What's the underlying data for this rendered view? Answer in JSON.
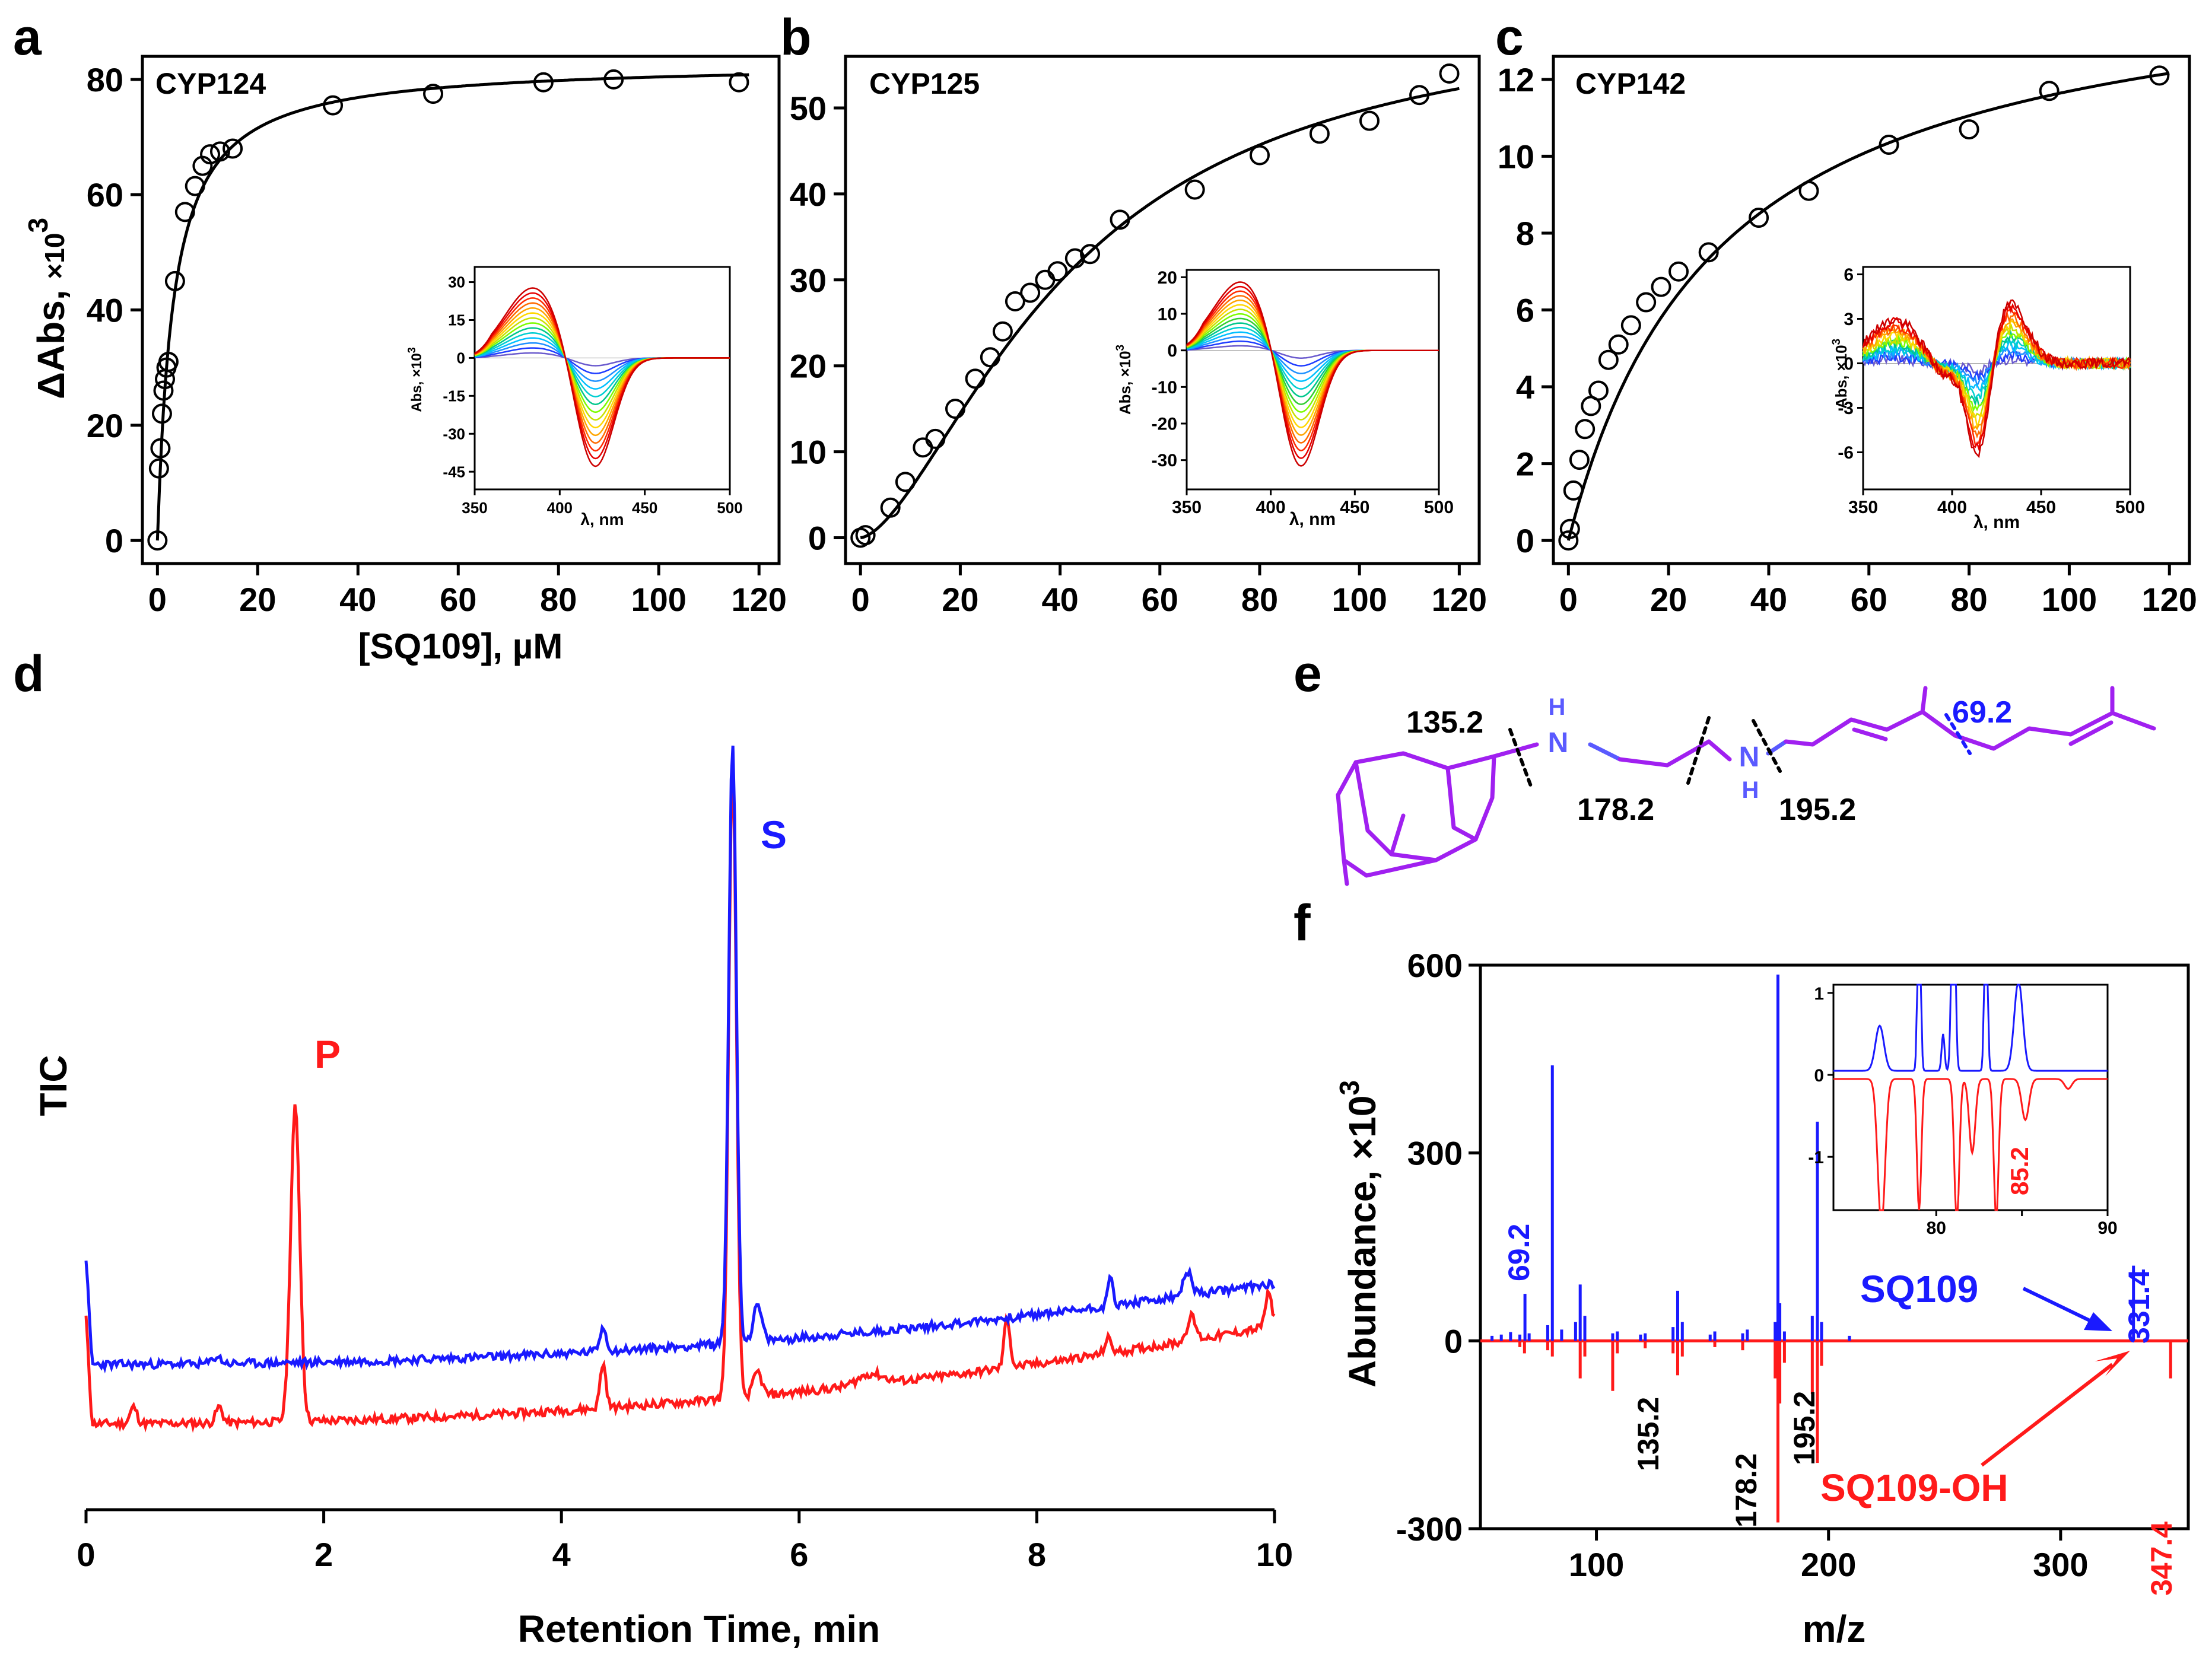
{
  "panels": {
    "a": "a",
    "b": "b",
    "c": "c",
    "d": "d",
    "e": "e",
    "f": "f"
  },
  "colors": {
    "black": "#000000",
    "red": "#ff1a1a",
    "blue": "#1a1aff",
    "purple": "#a020f0",
    "nitrogen": "#5a5aff",
    "cut_blue": "#1a1aff"
  },
  "chart_data": [
    {
      "id": "a",
      "type": "scatter",
      "title": "CYP124",
      "ylabel_main": "ΔAbs, ",
      "ylabel_sup": "×10",
      "ylabel_exp": "3",
      "xlabel": "[SQ109], µM",
      "xlim": [
        -3,
        124
      ],
      "ylim": [
        -4,
        84
      ],
      "xticks": [
        0,
        20,
        40,
        60,
        80,
        100,
        120
      ],
      "yticks": [
        0,
        20,
        40,
        60,
        80
      ],
      "x": [
        0,
        0.3,
        0.6,
        0.9,
        1.2,
        1.5,
        1.8,
        2.2,
        3.5,
        5.5,
        7.5,
        9,
        10.5,
        12.5,
        15,
        35,
        55,
        77,
        91,
        116
      ],
      "y": [
        0,
        12.5,
        16,
        22,
        26,
        28,
        30,
        31,
        45,
        57,
        61.5,
        65,
        67,
        67.5,
        68,
        75.5,
        77.5,
        79.5,
        80,
        79.5
      ],
      "fit": {
        "model": "hyperbolic",
        "Bmax": 83,
        "Kd": 3.2
      },
      "inset": {
        "ylabel": "Abs, ×10",
        "ylabel_exp": "3",
        "xlabel": "λ, nm",
        "xlim": [
          350,
          500
        ],
        "ylim": [
          -52,
          36
        ],
        "xticks": [
          350,
          400,
          450,
          500
        ],
        "yticks": [
          30,
          15,
          0,
          -15,
          -30,
          -45
        ],
        "peak_nm": 385,
        "trough_nm": 420,
        "peak_max": 28,
        "trough_max": -46,
        "n_spectra": 14,
        "noise": 0
      }
    },
    {
      "id": "b",
      "type": "scatter",
      "title": "CYP125",
      "xlim": [
        -3,
        124
      ],
      "ylim": [
        -3,
        56
      ],
      "xticks": [
        0,
        20,
        40,
        60,
        80,
        100,
        120
      ],
      "yticks": [
        0,
        10,
        20,
        30,
        40,
        50
      ],
      "x": [
        0,
        1,
        6,
        9,
        12.5,
        15,
        19,
        23,
        26,
        28.5,
        31,
        34,
        37,
        39.5,
        43,
        46,
        52,
        67,
        80,
        92,
        102,
        112,
        118
      ],
      "y": [
        0,
        0.3,
        3.5,
        6.5,
        10.5,
        11.5,
        15,
        18.5,
        21,
        24,
        27.5,
        28.5,
        30,
        31,
        32.5,
        33,
        37,
        40.5,
        44.5,
        47,
        48.5,
        51.5,
        54
      ],
      "fit": {
        "model": "hill",
        "Bmax": 62,
        "K": 42,
        "n": 1.6
      },
      "inset": {
        "ylabel": "Abs, ×10",
        "ylabel_exp": "3",
        "xlabel": "λ, nm",
        "xlim": [
          350,
          500
        ],
        "ylim": [
          -38,
          22
        ],
        "xticks": [
          350,
          400,
          450,
          500
        ],
        "yticks": [
          20,
          10,
          0,
          -10,
          -20,
          -30
        ],
        "peak_nm": 383,
        "trough_nm": 417,
        "peak_max": 19,
        "trough_max": -34,
        "n_spectra": 15,
        "noise": 0
      }
    },
    {
      "id": "c",
      "type": "scatter",
      "title": "CYP142",
      "xlim": [
        -3,
        124
      ],
      "ylim": [
        -0.6,
        12.6
      ],
      "xticks": [
        0,
        20,
        40,
        60,
        80,
        100,
        120
      ],
      "yticks": [
        0,
        2,
        4,
        6,
        8,
        10,
        12
      ],
      "x": [
        0,
        0.3,
        1,
        2.2,
        3.3,
        4.5,
        6,
        8,
        10,
        12.5,
        15.5,
        18.5,
        22,
        28,
        38,
        48,
        64,
        80,
        96,
        118
      ],
      "y": [
        0,
        0.3,
        1.3,
        2.1,
        2.9,
        3.5,
        3.9,
        4.7,
        5.1,
        5.6,
        6.2,
        6.6,
        7.0,
        7.5,
        8.4,
        9.1,
        10.3,
        10.7,
        11.7,
        12.1
      ],
      "fit": {
        "model": "hyperbolic",
        "Bmax": 15.2,
        "Kd": 30
      },
      "inset": {
        "ylabel": "Abs, ×10",
        "ylabel_exp": "3",
        "xlabel": "λ, nm",
        "xlim": [
          350,
          500
        ],
        "ylim": [
          -8.5,
          6.5
        ],
        "xticks": [
          350,
          400,
          450,
          500
        ],
        "yticks": [
          6,
          3,
          0,
          -3,
          -6
        ],
        "peak_nm": 432,
        "trough_nm": 415,
        "peak_max": 4.2,
        "trough_max": -7,
        "n_spectra": 14,
        "noise": 0.35
      }
    },
    {
      "id": "d",
      "type": "line",
      "ylabel": "TIC",
      "xlabel": "Retention Time, min",
      "xlim": [
        0,
        10
      ],
      "xticks": [
        0,
        2,
        4,
        6,
        8,
        10
      ],
      "label_P": "P",
      "label_S": "S",
      "series": [
        {
          "name": "red",
          "baseline_start": 60,
          "baseline_end": 225,
          "offset": 0,
          "peaks": [
            [
              0.4,
              28,
              0.04
            ],
            [
              1.12,
              27,
              0.04
            ],
            [
              1.76,
              530,
              0.055
            ],
            [
              4.35,
              75,
              0.035
            ],
            [
              5.44,
              1070,
              0.045
            ],
            [
              5.65,
              40,
              0.05
            ],
            [
              6.6,
              18,
              0.15
            ],
            [
              7.75,
              85,
              0.035
            ],
            [
              8.6,
              25,
              0.04
            ],
            [
              9.3,
              40,
              0.05
            ],
            [
              9.95,
              55,
              0.04
            ]
          ],
          "seed": 11
        },
        {
          "name": "blue",
          "baseline_start": 25,
          "baseline_end": 162,
          "offset": -135,
          "peaks": [
            [
              1.1,
              12,
              0.05
            ],
            [
              4.35,
              40,
              0.04
            ],
            [
              5.44,
              1015,
              0.045
            ],
            [
              5.65,
              60,
              0.05
            ],
            [
              8.62,
              48,
              0.03
            ],
            [
              9.27,
              40,
              0.05
            ]
          ],
          "seed": 23
        }
      ]
    },
    {
      "id": "f",
      "type": "bar",
      "ylabel": "Abundance, ×10",
      "ylabel_exp": "3",
      "xlabel": "m/z",
      "xlim": [
        50,
        355
      ],
      "ylim": [
        -300,
        600
      ],
      "xticks": [
        100,
        200,
        300
      ],
      "yticks": [
        600,
        300,
        0,
        -300
      ],
      "series": [
        {
          "name": "SQ109",
          "color": "blue",
          "x": [
            55,
            59,
            63,
            67,
            69.2,
            71,
            79,
            81,
            85,
            91,
            93,
            95,
            107,
            109,
            119,
            121,
            133,
            135,
            137,
            149,
            151,
            163,
            165,
            177,
            178.2,
            179,
            181,
            193,
            195.2,
            197,
            209,
            331.4
          ],
          "y": [
            8,
            10,
            14,
            10,
            75,
            12,
            25,
            440,
            18,
            30,
            90,
            40,
            12,
            15,
            10,
            12,
            22,
            80,
            30,
            10,
            15,
            12,
            18,
            30,
            585,
            60,
            15,
            40,
            350,
            30,
            8,
            120
          ]
        },
        {
          "name": "SQ109-OH",
          "color": "red",
          "x": [
            67,
            69,
            79,
            81,
            93,
            95,
            107,
            109,
            121,
            133,
            135,
            137,
            151,
            163,
            177,
            178.2,
            179,
            181,
            193,
            195.2,
            197,
            347.4
          ],
          "y": [
            -10,
            -20,
            -15,
            -25,
            -60,
            -25,
            -80,
            -20,
            -12,
            -20,
            -55,
            -25,
            -10,
            -15,
            -60,
            -290,
            -100,
            -35,
            -85,
            -195,
            -40,
            -60
          ]
        }
      ],
      "labels": {
        "l69": "69.2",
        "l135": "135.2",
        "l178": "178.2",
        "l195": "195.2",
        "l331": "331.4",
        "l347": "347.4",
        "sq109": "SQ109",
        "sq109oh": "SQ109-OH"
      },
      "inset": {
        "xlim": [
          74,
          90
        ],
        "ylim": [
          -1.65,
          1.1
        ],
        "xticks": [
          80,
          85,
          90
        ],
        "yticks": [
          1,
          0,
          -1
        ],
        "label_85": "85.2"
      }
    }
  ],
  "structure_e": {
    "frag1": "135.2",
    "frag2": "178.2",
    "frag3": "195.2",
    "frag4": "69.2",
    "nh_n": "N",
    "nh_h": "H"
  }
}
